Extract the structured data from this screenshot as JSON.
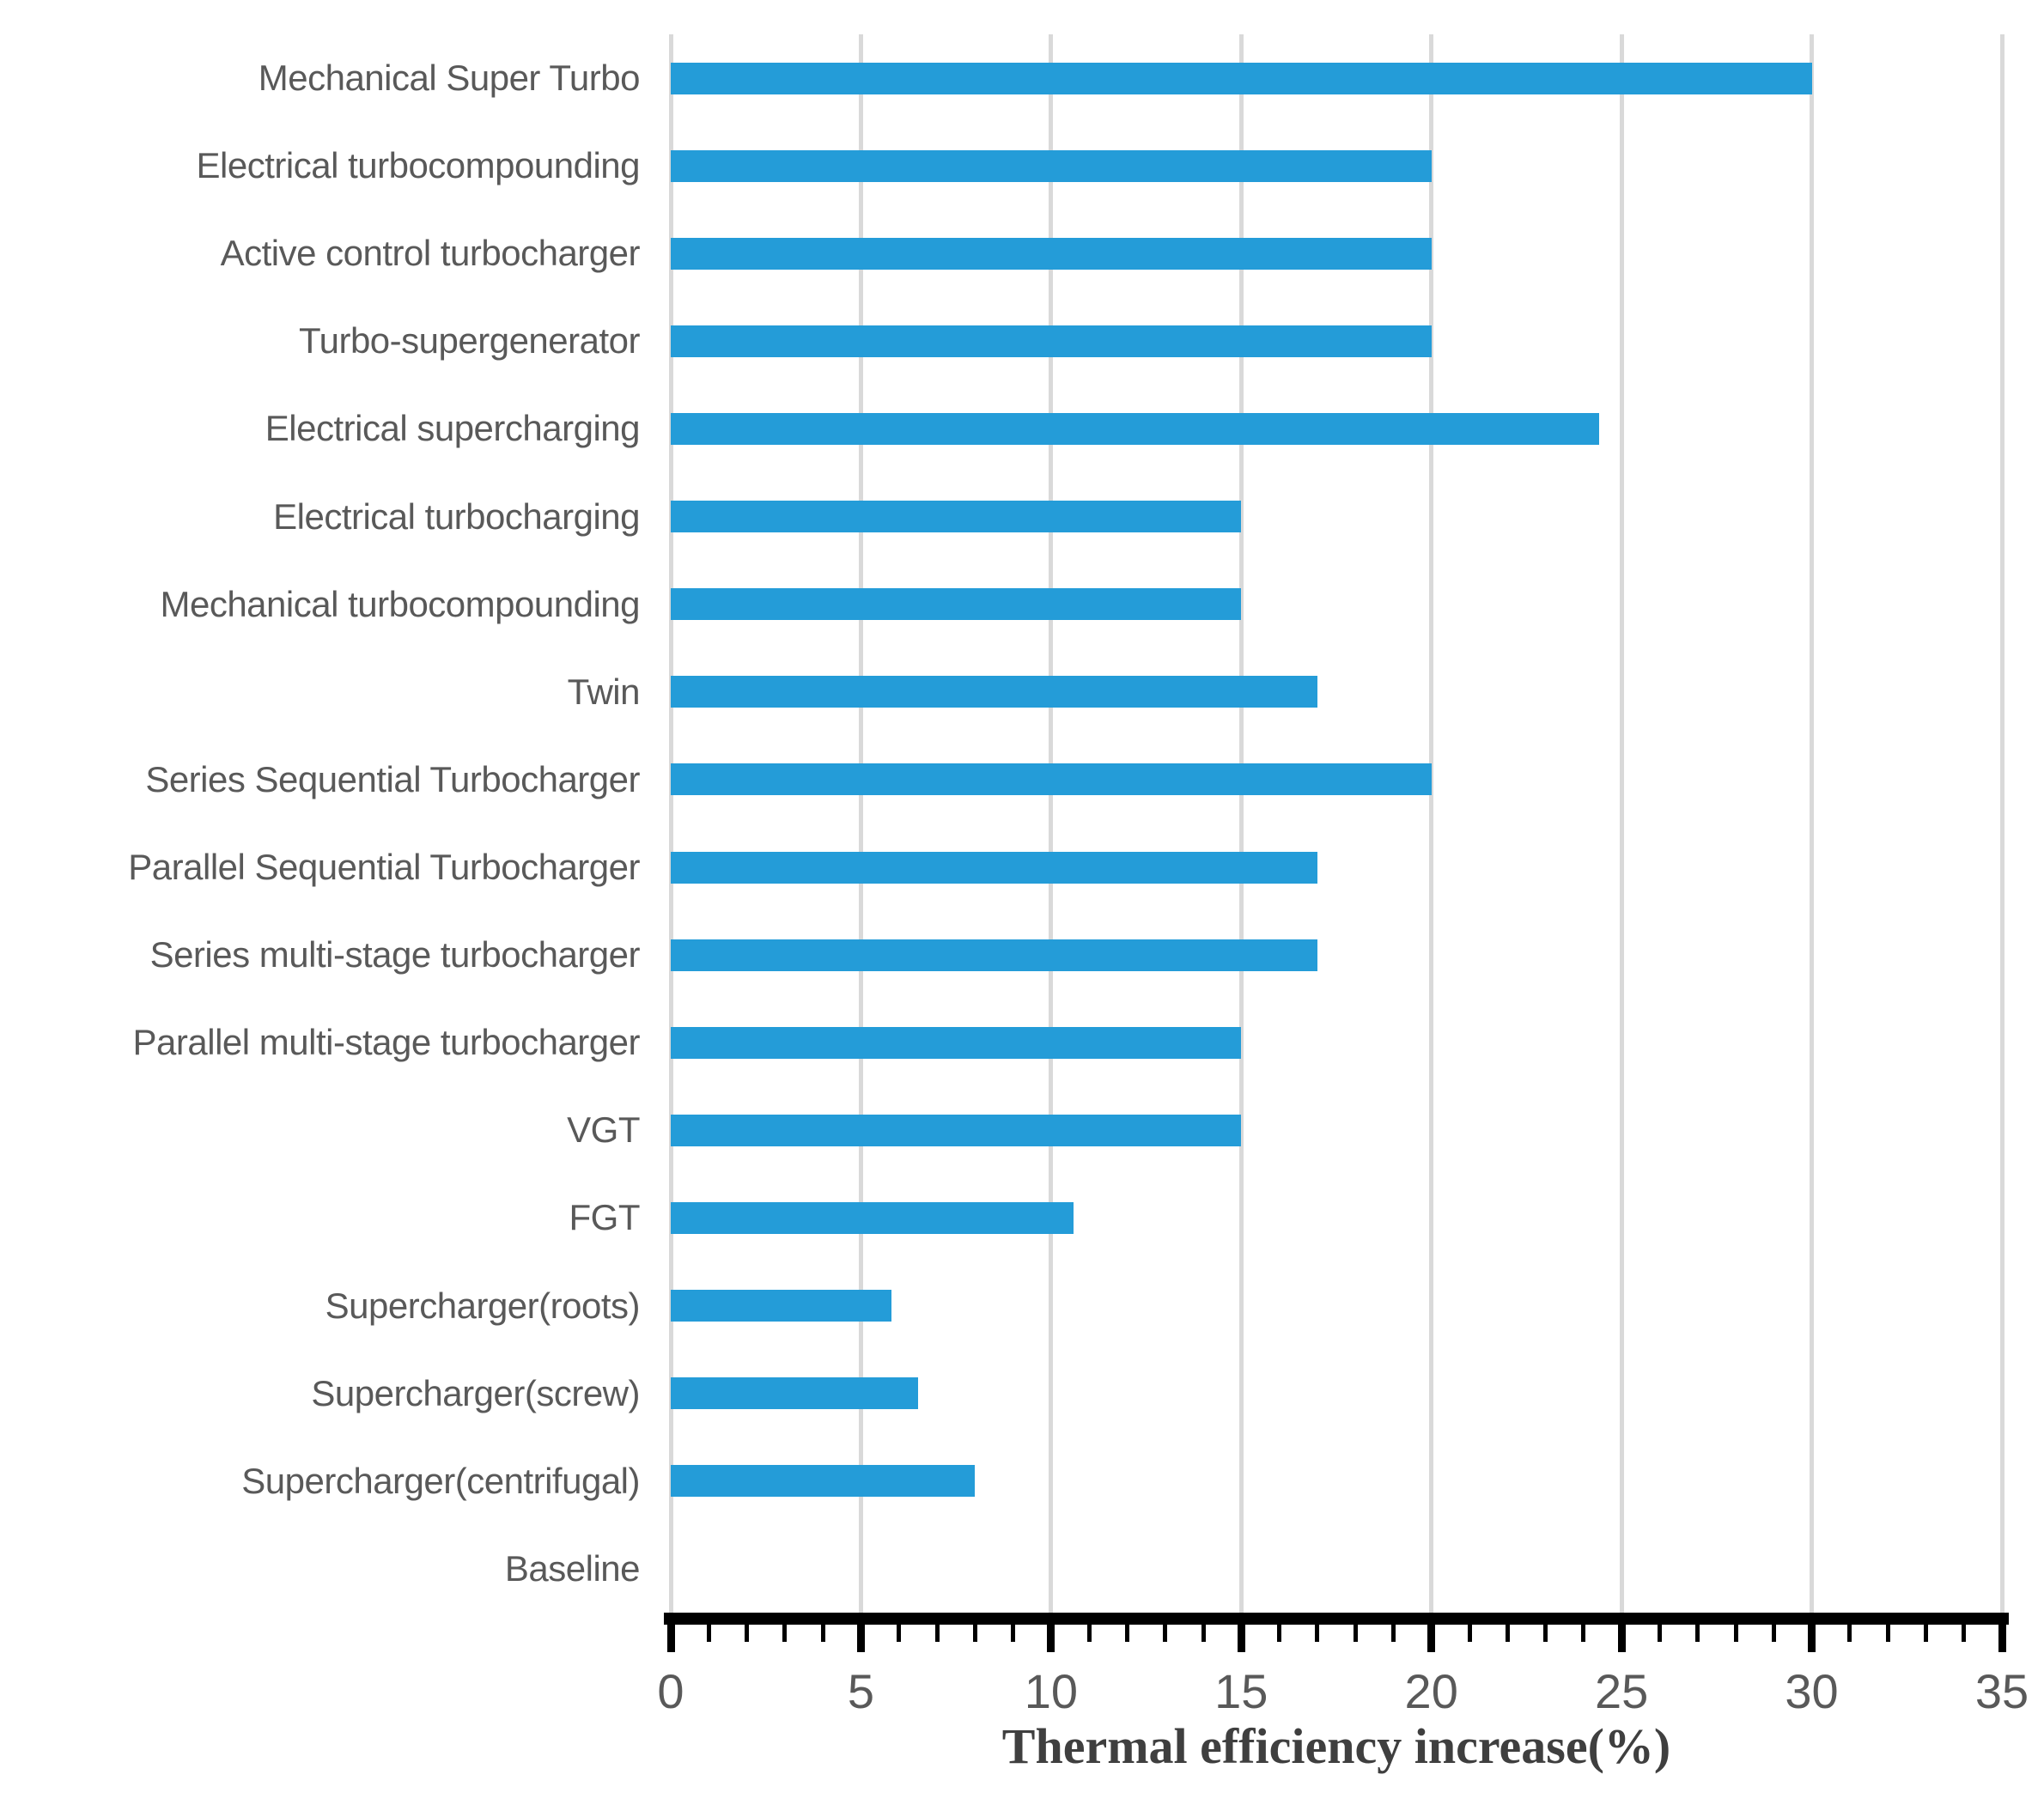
{
  "chart_data": {
    "type": "bar",
    "orientation": "horizontal",
    "title": "",
    "xlabel": "Thermal efficiency increase(%)",
    "ylabel": "",
    "xlim": [
      0,
      35
    ],
    "x_major_ticks": [
      0,
      5,
      10,
      15,
      20,
      25,
      30,
      35
    ],
    "x_tick_labels": [
      "0",
      "5",
      "10",
      "15",
      "20",
      "25",
      "30",
      "35"
    ],
    "x_minor_tick_step": 1,
    "grid": "vertical-major",
    "legend": "none",
    "categories": [
      "Mechanical Super Turbo",
      "Electrical turbocompounding",
      "Active control turbocharger",
      "Turbo-supergenerator",
      "Electrical supercharging",
      "Electrical turbocharging",
      "Mechanical turbocompounding",
      "Twin",
      "Series Sequential Turbocharger",
      "Parallel Sequential Turbocharger",
      "Series multi-stage turbocharger",
      "Parallel multi-stage turbocharger",
      "VGT",
      "FGT",
      "Supercharger(roots)",
      "Supercharger(screw)",
      "Supercharger(centrifugal)",
      "Baseline"
    ],
    "values": [
      30,
      20,
      20,
      20,
      24.4,
      15,
      15,
      17,
      20,
      17,
      17,
      15,
      15,
      10.6,
      5.8,
      6.5,
      8,
      0
    ],
    "colors": {
      "bar": "#249cd8",
      "gridline": "#d9d9d9",
      "axis_line": "#000000",
      "tick": "#000000",
      "tick_label": "#595959",
      "category_label": "#595959",
      "axis_title": "#3f3f3f",
      "background": "#ffffff"
    }
  }
}
